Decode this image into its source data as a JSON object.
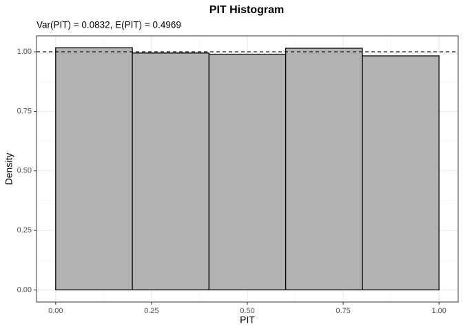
{
  "chart_data": {
    "type": "histogram",
    "title": "PIT Histogram",
    "subtitle": "Var(PIT) = 0.0832, E(PIT) = 0.4969",
    "x_label": "PIT",
    "y_label": "Density",
    "bins": [
      0,
      0.2,
      0.4,
      0.6,
      0.8,
      1.0
    ],
    "values": [
      1.017,
      0.995,
      0.99,
      1.015,
      0.983
    ],
    "color": "#b2b2b2",
    "edge_color": "#000000",
    "hline": 1,
    "xlim": [
      -0.05,
      1.05
    ],
    "xticks": [
      {
        "value": 0,
        "label": "0.00"
      },
      {
        "value": 0.25,
        "label": "0.25"
      },
      {
        "value": 0.5,
        "label": "0.50"
      },
      {
        "value": 0.75,
        "label": "0.75"
      },
      {
        "value": 1,
        "label": "1.00"
      }
    ],
    "xminor": [
      0.125,
      0.375,
      0.625,
      0.875
    ],
    "ylim": [
      -0.051,
      1.067
    ],
    "yticks": [
      {
        "value": 0,
        "label": "0.00"
      },
      {
        "value": 0.25,
        "label": "0.25"
      },
      {
        "value": 0.5,
        "label": "0.50"
      },
      {
        "value": 0.75,
        "label": "0.75"
      },
      {
        "value": 1,
        "label": "1.00"
      }
    ],
    "yminor": [
      0.125,
      0.375,
      0.625,
      0.875
    ],
    "grid": true
  }
}
